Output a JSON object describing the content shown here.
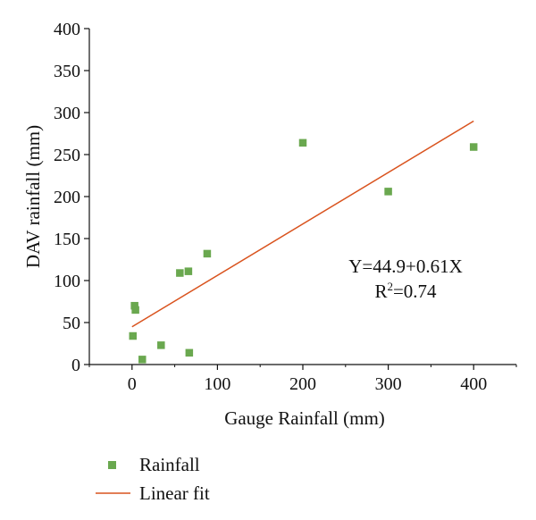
{
  "chart_data": {
    "type": "scatter",
    "xlabel": "Gauge Rainfall (mm)",
    "ylabel": "DAV rainfall (mm)",
    "xlim": [
      -50,
      450
    ],
    "ylim": [
      0,
      400
    ],
    "x_ticks": [
      0,
      100,
      200,
      300,
      400
    ],
    "y_ticks": [
      0,
      50,
      100,
      150,
      200,
      250,
      300,
      350,
      400
    ],
    "grid": false,
    "legend_position": "bottom-left (below plot)",
    "series": [
      {
        "name": "Rainfall",
        "kind": "scatter",
        "marker": "square",
        "color": "#6aa84f",
        "points": [
          {
            "x": 1,
            "y": 34
          },
          {
            "x": 3,
            "y": 70
          },
          {
            "x": 4,
            "y": 65
          },
          {
            "x": 12,
            "y": 6
          },
          {
            "x": 34,
            "y": 23
          },
          {
            "x": 56,
            "y": 109
          },
          {
            "x": 66,
            "y": 111
          },
          {
            "x": 67,
            "y": 14
          },
          {
            "x": 88,
            "y": 132
          },
          {
            "x": 200,
            "y": 264
          },
          {
            "x": 300,
            "y": 206
          },
          {
            "x": 400,
            "y": 259
          }
        ]
      },
      {
        "name": "Linear fit",
        "kind": "line",
        "color": "#d9531e",
        "points": [
          {
            "x": 0,
            "y": 44.9
          },
          {
            "x": 400,
            "y": 289.9
          }
        ]
      }
    ],
    "annotations": {
      "equation": "Y=44.9+0.61X",
      "r2_prefix": "R",
      "r2_sup": "2",
      "r2_suffix": "=0.74"
    }
  }
}
